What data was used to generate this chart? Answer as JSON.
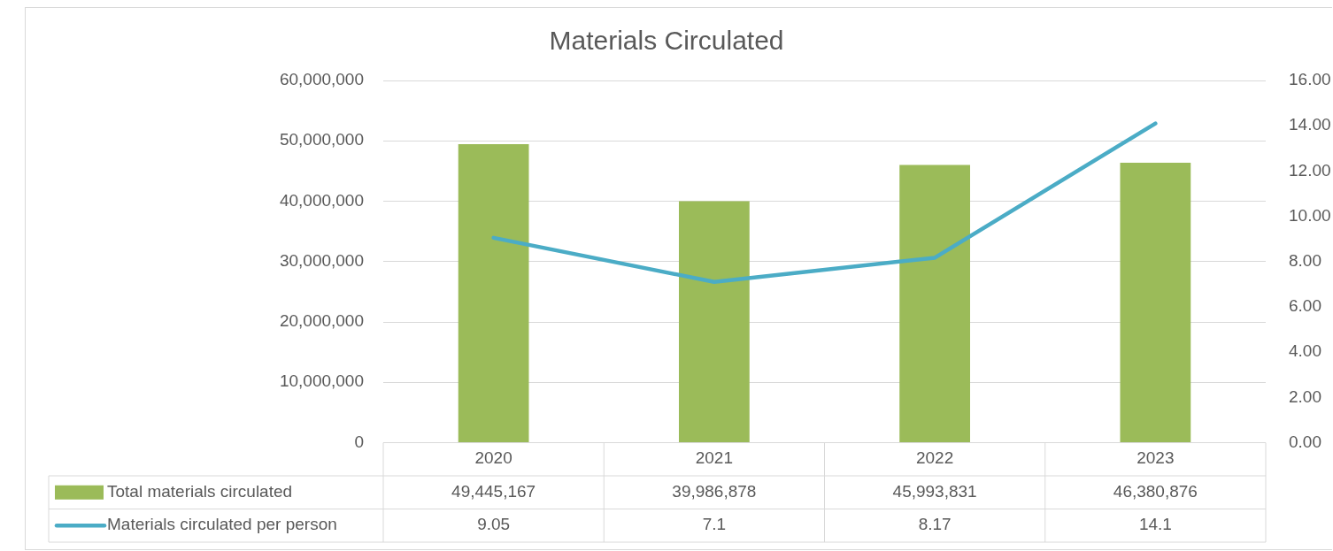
{
  "chart_data": {
    "type": "bar",
    "title": "Materials Circulated",
    "categories": [
      "2020",
      "2021",
      "2022",
      "2023"
    ],
    "series": [
      {
        "name": "Total materials circulated",
        "color": "#9bbb59",
        "values": [
          49445167,
          39986878,
          45993831,
          46380876
        ],
        "value_labels": [
          "49,445,167",
          "39,986,878",
          "45,993,831",
          "46,380,876"
        ]
      },
      {
        "name": "Materials circulated per person",
        "type": "line",
        "axis": "y2",
        "color": "#4bacc6",
        "values": [
          9.05,
          7.1,
          8.17,
          14.1
        ]
      }
    ],
    "ylim": [
      0,
      60000000
    ],
    "yticks": [
      0,
      {
        "value": 10000000,
        "label": "10,000,000"
      },
      {
        "value": 20000000,
        "label": "20,000,000"
      },
      {
        "value": 30000000,
        "label": "30,000,000"
      },
      {
        "value": 40000000,
        "label": "40,000,000"
      },
      {
        "value": 50000000,
        "label": "50,000,000"
      },
      {
        "value": 60000000,
        "label": "60,000,000"
      }
    ],
    "y2lim": [
      0,
      16
    ],
    "y2ticks": [
      {
        "value": 0,
        "label": "0.00"
      },
      {
        "value": 2,
        "label": "2.00"
      },
      {
        "value": 4,
        "label": "4.00"
      },
      {
        "value": 6,
        "label": "6.00"
      },
      {
        "value": 8,
        "label": "8.00"
      },
      {
        "value": 10,
        "label": "10.00"
      },
      {
        "value": 12,
        "label": "12.00"
      },
      {
        "value": 14,
        "label": "14.00"
      },
      {
        "value": 16,
        "label": "16.00"
      }
    ],
    "grid": "y",
    "legend": "bottom",
    "marker": "none",
    "line_style": "solid",
    "data_labels": true
  }
}
